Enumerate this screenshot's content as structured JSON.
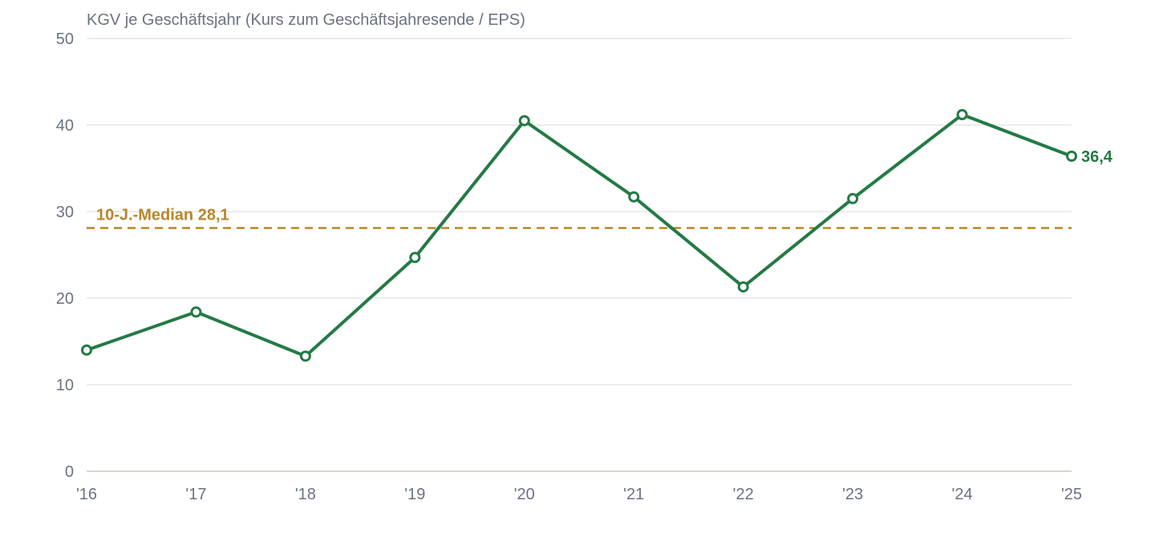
{
  "chart_data": {
    "type": "line",
    "title": "KGV je Geschäftsjahr (Kurs zum Geschäftsjahresende / EPS)",
    "categories": [
      "'16",
      "'17",
      "'18",
      "'19",
      "'20",
      "'21",
      "'22",
      "'23",
      "'24",
      "'25"
    ],
    "series": [
      {
        "values": [
          14.0,
          18.4,
          13.3,
          24.7,
          40.5,
          31.7,
          21.3,
          31.5,
          41.2,
          36.4
        ]
      }
    ],
    "ylim": [
      0,
      50
    ],
    "yticks": [
      0,
      10,
      20,
      30,
      40,
      50
    ],
    "grid": true,
    "median": {
      "label": "10-J.-Median 28,1",
      "value": 28.1
    },
    "end_label": "36,4",
    "colors": {
      "line": "#237a45",
      "median": "#b8862a",
      "grid": "#e6e6e6",
      "baseline": "#d6d6cc",
      "text": "#6b7280"
    }
  }
}
